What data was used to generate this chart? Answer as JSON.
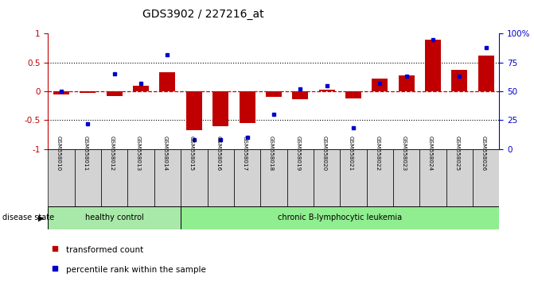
{
  "title": "GDS3902 / 227216_at",
  "samples": [
    "GSM658010",
    "GSM658011",
    "GSM658012",
    "GSM658013",
    "GSM658014",
    "GSM658015",
    "GSM658016",
    "GSM658017",
    "GSM658018",
    "GSM658019",
    "GSM658020",
    "GSM658021",
    "GSM658022",
    "GSM658023",
    "GSM658024",
    "GSM658025",
    "GSM658026"
  ],
  "bar_values": [
    -0.05,
    -0.02,
    -0.08,
    0.1,
    0.33,
    -0.67,
    -0.6,
    -0.55,
    -0.1,
    -0.14,
    0.03,
    -0.13,
    0.22,
    0.27,
    0.9,
    0.37,
    0.62
  ],
  "dot_values": [
    0.5,
    0.22,
    0.65,
    0.57,
    0.82,
    0.08,
    0.08,
    0.1,
    0.3,
    0.52,
    0.55,
    0.18,
    0.57,
    0.63,
    0.95,
    0.63,
    0.88
  ],
  "bar_color": "#c00000",
  "dot_color": "#0000cc",
  "zero_line_color": "#cc0000",
  "dotted_line_color": "#000000",
  "background_plot": "#ffffff",
  "healthy_color": "#a8e8a8",
  "leukemia_color": "#90ee90",
  "healthy_label": "healthy control",
  "leukemia_label": "chronic B-lymphocytic leukemia",
  "n_healthy": 5,
  "ylim": [
    -1.0,
    1.0
  ],
  "right_ylim": [
    0,
    100
  ],
  "right_yticks": [
    0,
    25,
    50,
    75,
    100
  ],
  "right_yticklabels": [
    "0",
    "25",
    "50",
    "75",
    "100%"
  ],
  "left_yticks": [
    -1.0,
    -0.5,
    0.0,
    0.5,
    1.0
  ],
  "left_yticklabels": [
    "-1",
    "-0.5",
    "0",
    "0.5",
    "1"
  ],
  "dotted_lines": [
    0.5,
    -0.5
  ],
  "legend_bar": "transformed count",
  "legend_dot": "percentile rank within the sample",
  "bar_width": 0.6,
  "disease_state_label": "disease state",
  "right_tick_color": "#0000cc",
  "label_box_color": "#d3d3d3"
}
